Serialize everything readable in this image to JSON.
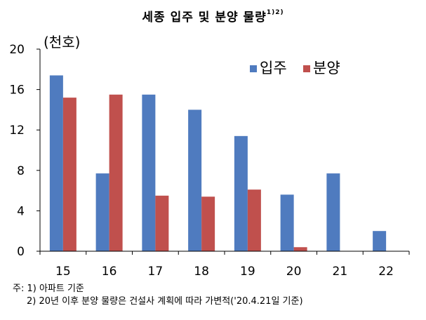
{
  "chart_data": {
    "type": "bar",
    "title": "세종 입주 및 분양 물량",
    "title_sup": "1)2)",
    "unit": "(천호)",
    "categories": [
      "15",
      "16",
      "17",
      "18",
      "19",
      "20",
      "21",
      "22"
    ],
    "series": [
      {
        "name": "입주",
        "color": "#4F7BBF",
        "values": [
          17.4,
          7.7,
          15.5,
          14.0,
          11.4,
          5.6,
          7.7,
          2.0
        ]
      },
      {
        "name": "분양",
        "color": "#C0504D",
        "values": [
          15.2,
          15.5,
          5.5,
          5.4,
          6.1,
          0.4,
          null,
          null
        ]
      }
    ],
    "ylim": [
      0,
      20
    ],
    "yticks": [
      "0",
      "4",
      "8",
      "12",
      "16",
      "20"
    ],
    "legend": "top-right",
    "grid": false
  },
  "notes": [
    "주: 1) 아파트 기준",
    "2) 20년 이후 분양 물량은 건설사 계획에 따라 가변적('20.4.21일 기준)"
  ]
}
